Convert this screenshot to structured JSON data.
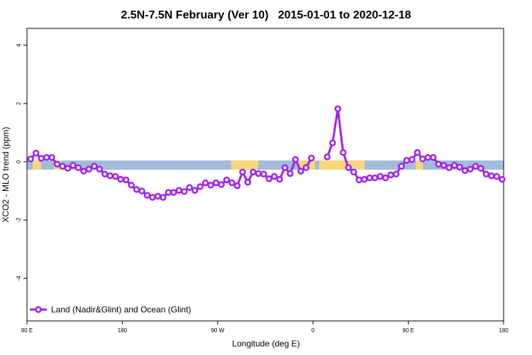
{
  "chart_data": {
    "type": "line",
    "title": "2.5N-7.5N February (Ver 10)   2015-01-01 to 2020-12-18",
    "xlabel": "Longitude (deg E)",
    "ylabel": "XCO2 - MLO trend (ppm)",
    "xlim": [
      90,
      540
    ],
    "ylim": [
      -5.46,
      4.58
    ],
    "xticks": [
      {
        "value": 90,
        "label": "90 E"
      },
      180,
      {
        "value": 270,
        "label": "90 W"
      },
      {
        "value": 360,
        "label": "0"
      },
      {
        "value": 450,
        "label": "90 E"
      },
      {
        "value": 540,
        "label": "180"
      }
    ],
    "yticks": [
      -4,
      -2,
      0,
      2,
      4
    ],
    "legend": "bottom-left",
    "x": [
      93.5,
      98.5,
      103.5,
      108.5,
      113.5,
      118.5,
      123.5,
      128.5,
      133.5,
      138.5,
      143.5,
      148.5,
      153.5,
      158.5,
      163.5,
      168.5,
      173.5,
      178.5,
      183.5,
      188.5,
      193.5,
      198.5,
      203.5,
      208.5,
      213.5,
      218.5,
      223.5,
      228.5,
      233.5,
      238.5,
      243.5,
      248.5,
      253.5,
      258.5,
      263.5,
      268.5,
      273.5,
      278.5,
      283.5,
      288.5,
      293.5,
      298.5,
      303.5,
      308.5,
      313.5,
      318.5,
      323.5,
      328.5,
      333.5,
      338.5,
      343.5,
      348.5,
      353.5,
      358.5,
      363.5,
      368.5,
      373.5,
      378.5,
      383.5,
      388.5,
      393.5,
      398.5,
      403.5,
      408.5,
      413.5,
      418.5,
      423.5,
      428.5,
      433.5,
      438.5,
      443.5,
      448.5,
      453.5,
      458.5,
      463.5,
      468.5,
      473.5,
      478.5,
      483.5,
      488.5,
      493.5,
      498.5,
      503.5,
      508.5,
      513.5,
      518.5,
      523.5,
      528.5,
      533.5,
      538.5
    ],
    "series": [
      {
        "name": "Land (Nadir&Glint) and Ocean (Glint)",
        "color": "#a020f0",
        "values": [
          0.1,
          0.3,
          0.12,
          0.15,
          0.15,
          -0.08,
          -0.15,
          -0.22,
          -0.12,
          -0.2,
          -0.32,
          -0.25,
          -0.15,
          -0.25,
          -0.42,
          -0.48,
          -0.5,
          -0.6,
          -0.62,
          -0.8,
          -0.95,
          -1.0,
          -1.15,
          -1.22,
          -1.18,
          -1.22,
          -1.05,
          -1.05,
          -0.98,
          -1.02,
          -0.88,
          -0.98,
          -0.85,
          -0.72,
          -0.8,
          -0.72,
          -0.78,
          -0.62,
          -0.72,
          -0.82,
          -0.35,
          -0.7,
          -0.35,
          -0.4,
          -0.42,
          -0.58,
          -0.5,
          -0.6,
          -0.2,
          -0.4,
          0.08,
          -0.32,
          -0.2,
          0.13,
          null,
          null,
          0.17,
          0.65,
          1.82,
          0.32,
          -0.2,
          -0.35,
          -0.62,
          -0.6,
          -0.55,
          -0.55,
          -0.5,
          -0.55,
          -0.45,
          -0.42,
          -0.15,
          0.05,
          0.08,
          0.32,
          0.1,
          0.15,
          0.15,
          -0.08,
          -0.12,
          -0.2,
          -0.12,
          -0.18,
          -0.3,
          -0.25,
          -0.15,
          -0.22,
          -0.42,
          -0.48,
          -0.5,
          -0.6
        ]
      }
    ]
  }
}
